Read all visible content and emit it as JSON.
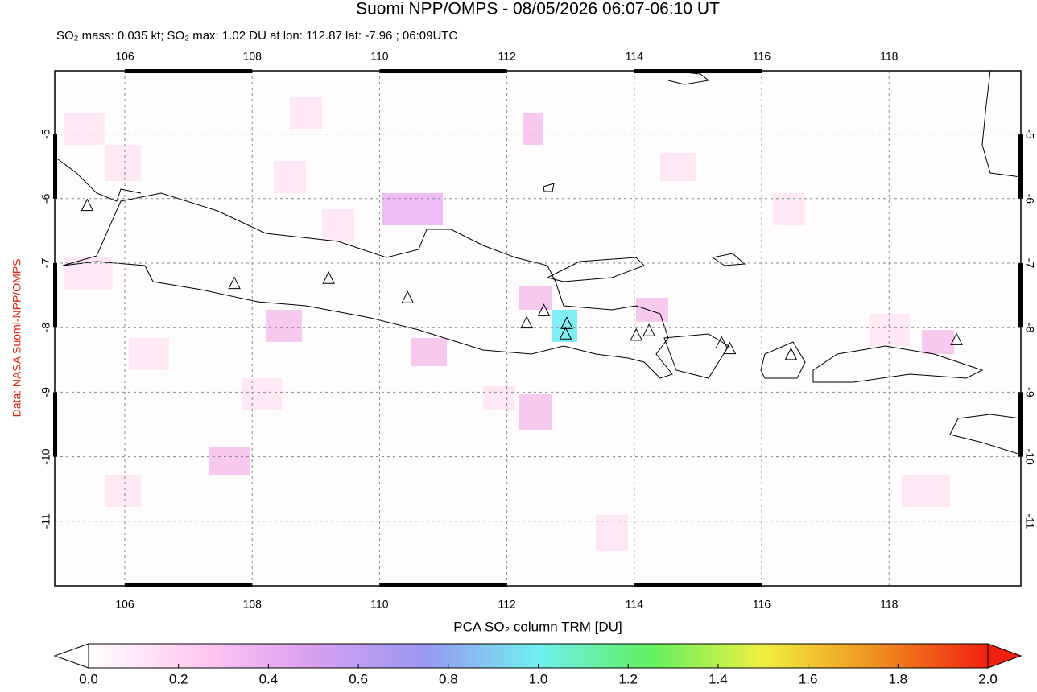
{
  "title": "Suomi NPP/OMPS - 08/05/2026 06:07-06:10 UT",
  "subtitle": "SO₂ mass: 0.035 kt; SO₂ max: 1.02 DU at lon: 112.87 lat: -7.96 ; 06:09UTC",
  "credit": "Data: NASA Suomi-NPP/OMPS",
  "map": {
    "xlim": [
      104.9,
      120.07
    ],
    "ylim": [
      -12,
      -4.02
    ],
    "xticks": [
      106,
      108,
      110,
      112,
      114,
      116,
      118
    ],
    "yticks": [
      -5,
      -6,
      -7,
      -8,
      -9,
      -10,
      -11
    ],
    "volcanoes": [
      [
        105.41,
        -6.11
      ],
      [
        107.72,
        -7.32
      ],
      [
        109.2,
        -7.24
      ],
      [
        110.44,
        -7.54
      ],
      [
        112.31,
        -7.93
      ],
      [
        112.58,
        -7.74
      ],
      [
        112.94,
        -7.94
      ],
      [
        112.92,
        -8.1
      ],
      [
        114.03,
        -8.12
      ],
      [
        114.23,
        -8.05
      ],
      [
        115.37,
        -8.24
      ],
      [
        115.5,
        -8.33
      ],
      [
        116.46,
        -8.42
      ],
      [
        119.06,
        -8.19
      ]
    ]
  },
  "colorbar": {
    "label": "PCA SO₂ column TRM [DU]",
    "range": [
      0,
      2
    ],
    "colors": [
      "#ffffff",
      "#ffc8f0",
      "#d8a0f0",
      "#9898f0",
      "#70f0f0",
      "#60f060",
      "#f0f040",
      "#f09020",
      "#f02010"
    ],
    "ticks": [
      {
        "value": 0,
        "label": "0.0"
      },
      {
        "value": 0.2,
        "label": "0.2"
      },
      {
        "value": 0.4,
        "label": "0.4"
      },
      {
        "value": 0.6,
        "label": "0.6"
      },
      {
        "value": 0.8,
        "label": "0.8"
      },
      {
        "value": 1.0,
        "label": "1.0"
      },
      {
        "value": 1.2,
        "label": "1.2"
      },
      {
        "value": 1.4,
        "label": "1.4"
      },
      {
        "value": 1.6,
        "label": "1.6"
      },
      {
        "value": 1.8,
        "label": "1.8"
      },
      {
        "value": 2.0,
        "label": "2.0"
      }
    ]
  }
}
